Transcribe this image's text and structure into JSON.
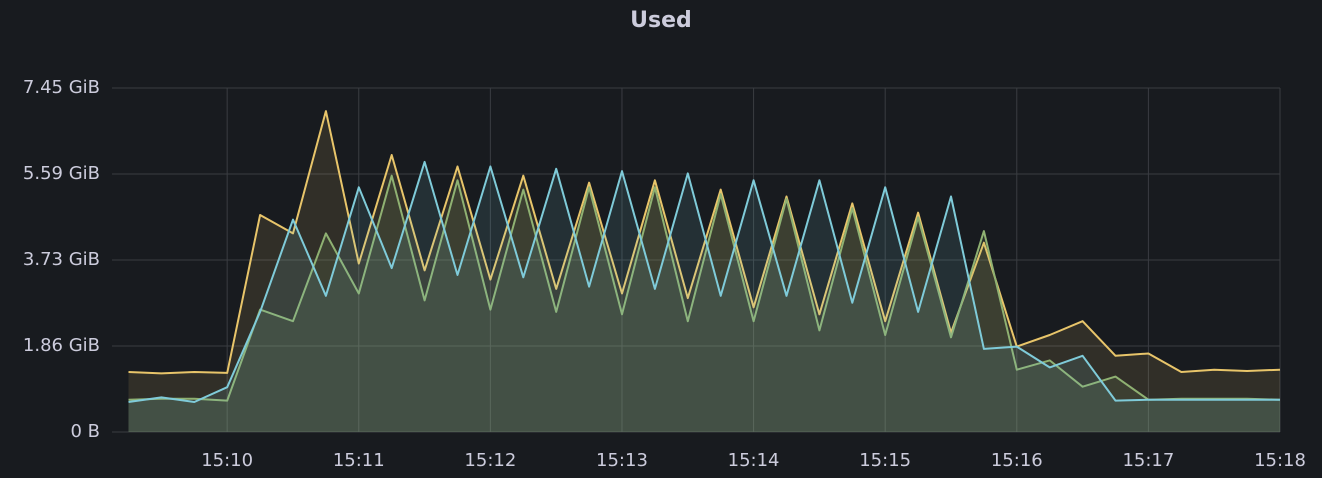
{
  "chart_data": {
    "type": "line",
    "title": "Used",
    "categories": [
      null,
      null,
      null,
      "15:10",
      null,
      null,
      null,
      "15:11",
      null,
      null,
      null,
      "15:12",
      null,
      null,
      null,
      "15:13",
      null,
      null,
      null,
      "15:14",
      null,
      null,
      null,
      "15:15",
      null,
      null,
      null,
      "15:16",
      null,
      null,
      null,
      "15:17",
      null,
      null,
      null,
      "15:18"
    ],
    "series": [
      {
        "color": "#e8c56a",
        "values": [
          1.3,
          1.27,
          1.3,
          1.28,
          4.7,
          4.3,
          6.95,
          3.65,
          6.0,
          3.5,
          5.75,
          3.3,
          5.55,
          3.1,
          5.4,
          3.0,
          5.45,
          2.9,
          5.25,
          2.7,
          5.1,
          2.55,
          4.95,
          2.4,
          4.75,
          2.15,
          4.1,
          1.85,
          2.1,
          2.4,
          1.65,
          1.7,
          1.3,
          1.35,
          1.32,
          1.35
        ]
      },
      {
        "color": "#8fb172",
        "values": [
          0.7,
          0.72,
          0.72,
          0.68,
          2.65,
          2.4,
          4.3,
          3.0,
          5.55,
          2.85,
          5.45,
          2.65,
          5.25,
          2.6,
          5.3,
          2.55,
          5.3,
          2.4,
          5.15,
          2.4,
          5.05,
          2.2,
          4.85,
          2.1,
          4.65,
          2.05,
          4.35,
          1.35,
          1.55,
          0.98,
          1.2,
          0.7,
          0.72,
          0.72,
          0.72,
          0.7
        ]
      },
      {
        "color": "#7fcbd9",
        "values": [
          0.65,
          0.75,
          0.65,
          0.97,
          2.6,
          4.6,
          2.95,
          5.3,
          3.55,
          5.85,
          3.4,
          5.75,
          3.35,
          5.7,
          3.15,
          5.65,
          3.1,
          5.6,
          2.95,
          5.45,
          2.95,
          5.45,
          2.8,
          5.3,
          2.6,
          5.1,
          1.8,
          1.85,
          1.4,
          1.65,
          0.68,
          0.7,
          0.7,
          0.7,
          0.7,
          0.7
        ]
      }
    ],
    "ylim": [
      0,
      7.45
    ],
    "yticks": [
      {
        "value": 0,
        "label": "0 B"
      },
      {
        "value": 1.8625,
        "label": "1.86 GiB"
      },
      {
        "value": 3.725,
        "label": "3.73 GiB"
      },
      {
        "value": 5.5875,
        "label": "5.59 GiB"
      },
      {
        "value": 7.45,
        "label": "7.45 GiB"
      }
    ],
    "grid": true,
    "fill_opacity": 0.12
  }
}
